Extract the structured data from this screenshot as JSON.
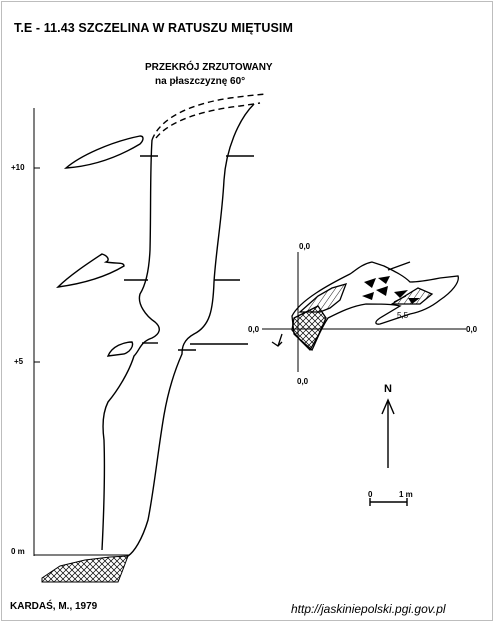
{
  "title": "T.E - 11.43  SZCZELINA W RATUSZU MIĘTUSIM",
  "projection": {
    "line1": "PRZEKRÓJ ZRZUTOWANY",
    "line2": "na płaszczyznę 60°"
  },
  "scale_axis": {
    "labels": [
      "+10",
      "+5",
      "0 m"
    ]
  },
  "plan": {
    "top_label": "0,0",
    "left_label": "0,0",
    "right_label": "0,0",
    "bottom_label": "0,0",
    "depth_label": "5,5"
  },
  "north": {
    "label": "N"
  },
  "scale_bar": {
    "start": "0",
    "end": "1 m"
  },
  "author": "KARDAŚ, M., 1979",
  "url": "http://jaskiniepolski.pgi.gov.pl"
}
